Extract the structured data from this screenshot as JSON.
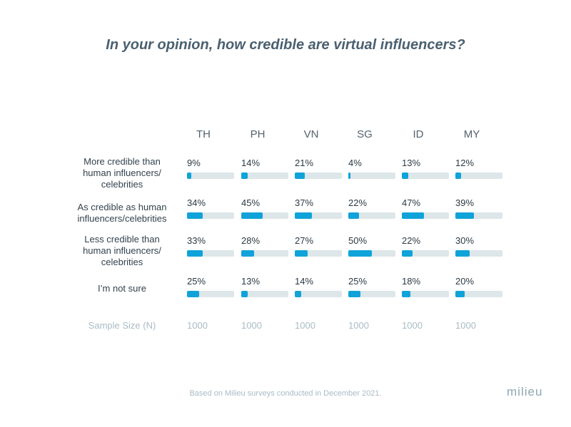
{
  "title": "In your opinion, how credible are virtual influencers?",
  "colors": {
    "fill": "#0fa3d9",
    "track": "#dde6e8",
    "title": "#4a6070",
    "muted": "#a9bcc6"
  },
  "chart_data": {
    "type": "bar",
    "title": "In your opinion, how credible are virtual influencers?",
    "categories": [
      "TH",
      "PH",
      "VN",
      "SG",
      "ID",
      "MY"
    ],
    "xlabel": "",
    "ylabel": "",
    "ylim": [
      0,
      100
    ],
    "series": [
      {
        "name": "More credible than human influencers/ celebrities",
        "values": [
          9,
          14,
          21,
          4,
          13,
          12
        ]
      },
      {
        "name": "As credible as human influencers/celebrities",
        "values": [
          34,
          45,
          37,
          22,
          47,
          39
        ]
      },
      {
        "name": "Less credible than human influencers/ celebrities",
        "values": [
          33,
          28,
          27,
          50,
          22,
          30
        ]
      },
      {
        "name": "I’m not sure",
        "values": [
          25,
          13,
          14,
          25,
          18,
          20
        ]
      }
    ],
    "sample_size_label": "Sample Size (N)",
    "sample_sizes": [
      "1000",
      "1000",
      "1000",
      "1000",
      "1000",
      "1000"
    ]
  },
  "row_labels": [
    [
      "More credible than",
      "human influencers/",
      "celebrities"
    ],
    [
      "As credible as human",
      "influencers/celebrities"
    ],
    [
      "Less credible than",
      "human influencers/",
      "celebrities"
    ],
    [
      "I’m not sure"
    ]
  ],
  "footnote": "Based on Milieu surveys conducted in December 2021.",
  "logo": "milieu"
}
